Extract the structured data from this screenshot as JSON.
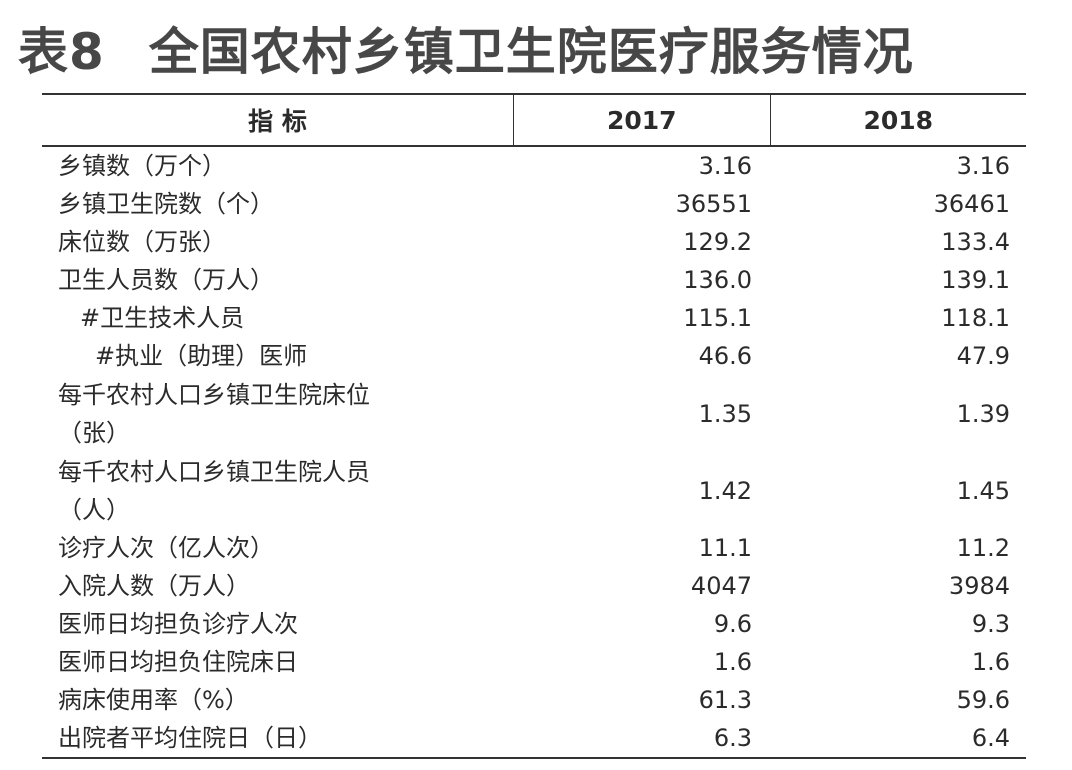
{
  "header": {
    "title_number": "表8",
    "title": "全国农村乡镇卫生院医疗服务情况"
  },
  "table": {
    "columns": [
      "指 标",
      "2017",
      "2018"
    ],
    "rows": [
      [
        "乡镇数（万个）",
        "3.16",
        "3.16"
      ],
      [
        "乡镇卫生院数（个）",
        "36551",
        "36461"
      ],
      [
        "床位数（万张）",
        "129.2",
        "133.4"
      ],
      [
        "卫生人员数（万人）",
        "136.0",
        "139.1"
      ],
      [
        "#卫生技术人员",
        "115.1",
        "118.1"
      ],
      [
        "#执业（助理）医师",
        "46.6",
        "47.9"
      ],
      [
        "每千农村人口乡镇卫生院床位（张）",
        "1.35",
        "1.39"
      ],
      [
        "每千农村人口乡镇卫生院人员（人）",
        "1.42",
        "1.45"
      ],
      [
        "诊疗人次（亿人次）",
        "11.1",
        "11.2"
      ],
      [
        "入院人数（万人）",
        "4047",
        "3984"
      ],
      [
        "医师日均担负诊疗人次",
        "9.6",
        "9.3"
      ],
      [
        "医师日均担负住院床日",
        "1.6",
        "1.6"
      ],
      [
        "病床使用率（%）",
        "61.3",
        "59.6"
      ],
      [
        "出院者平均住院日（日）",
        "6.3",
        "6.4"
      ]
    ]
  }
}
